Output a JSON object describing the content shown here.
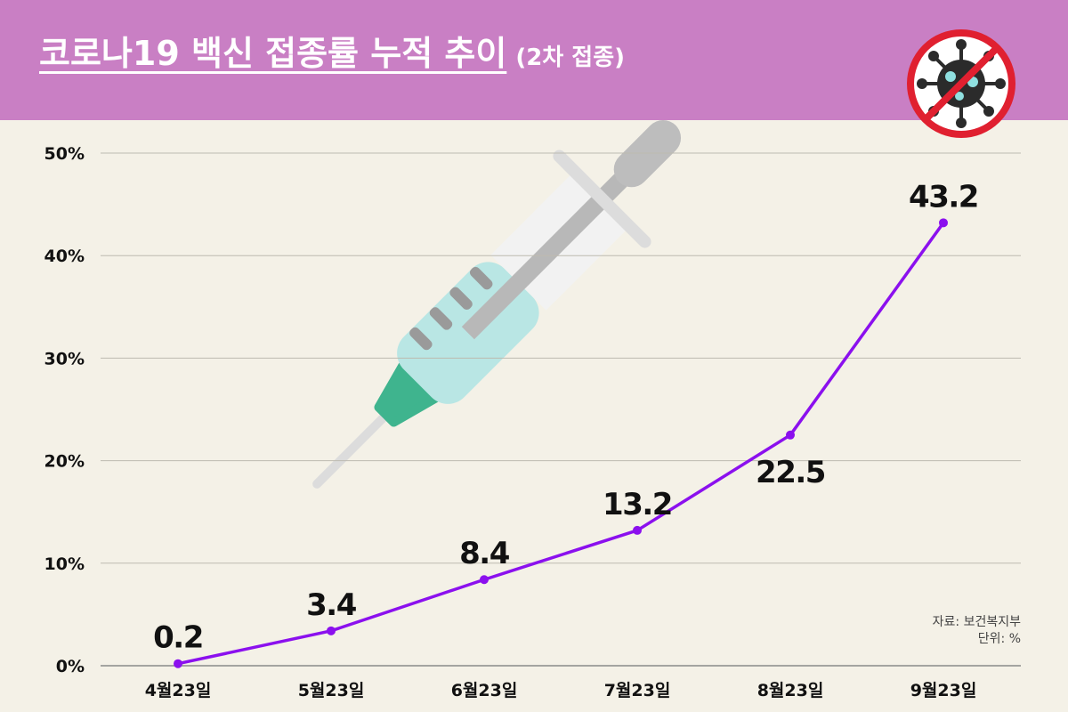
{
  "header": {
    "title": "코로나19 백신 접종률 누적 추이",
    "subtitle": "(2차 접종)"
  },
  "source": {
    "line1": "자료: 보건복지부",
    "line2": "단위: %"
  },
  "icons": {
    "virus": "no-virus-icon",
    "syringe": "syringe-icon"
  },
  "colors": {
    "header_bg": "#c97fc4",
    "background": "#f4f1e7",
    "line": "#8b10ee",
    "ban": "#e02030"
  },
  "chart_data": {
    "type": "line",
    "title": "코로나19 백신 접종률 누적 추이",
    "xlabel": "",
    "ylabel": "",
    "categories": [
      "4월23일",
      "5월23일",
      "6월23일",
      "7월23일",
      "8월23일",
      "9월23일"
    ],
    "values": [
      0.2,
      3.4,
      8.4,
      13.2,
      22.5,
      43.2
    ],
    "data_labels": [
      "0.2",
      "3.4",
      "8.4",
      "13.2",
      "22.5",
      "43.2"
    ],
    "yticks": [
      0,
      10,
      20,
      30,
      40,
      50
    ],
    "ytick_labels": [
      "0%",
      "10%",
      "20%",
      "30%",
      "40%",
      "50%"
    ],
    "ylim": [
      0,
      50
    ],
    "grid": true
  }
}
